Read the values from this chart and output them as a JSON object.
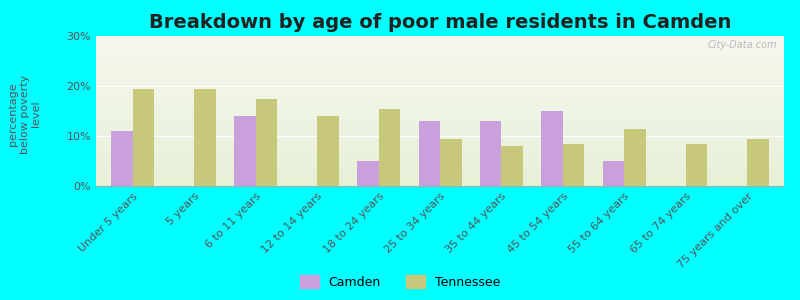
{
  "title": "Breakdown by age of poor male residents in Camden",
  "ylabel": "percentage\nbelow poverty\nlevel",
  "categories": [
    "Under 5 years",
    "5 years",
    "6 to 11 years",
    "12 to 14 years",
    "18 to 24 years",
    "25 to 34 years",
    "35 to 44 years",
    "45 to 54 years",
    "55 to 64 years",
    "65 to 74 years",
    "75 years and over"
  ],
  "camden": [
    11,
    0,
    14,
    0,
    5,
    13,
    13,
    15,
    5,
    0,
    0
  ],
  "tennessee": [
    19.5,
    19.5,
    17.5,
    14,
    15.5,
    9.5,
    8,
    8.5,
    11.5,
    8.5,
    9.5
  ],
  "camden_color": "#c9a0dc",
  "tennessee_color": "#c8c87a",
  "outer_bg": "#00ffff",
  "plot_bg_top": "#e8f0d8",
  "plot_bg_bottom": "#f5f8ee",
  "ylim": [
    0,
    30
  ],
  "yticks": [
    0,
    10,
    20,
    30
  ],
  "ytick_labels": [
    "0%",
    "10%",
    "20%",
    "30%"
  ],
  "bar_width": 0.35,
  "title_fontsize": 14,
  "axis_label_fontsize": 8,
  "tick_fontsize": 8,
  "legend_fontsize": 9,
  "watermark": "City-Data.com"
}
